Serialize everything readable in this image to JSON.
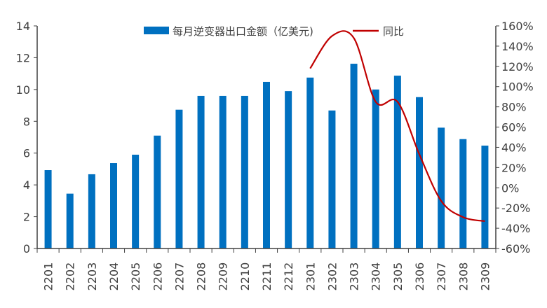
{
  "chart_data": {
    "type": "bar+line",
    "categories": [
      "2201",
      "2202",
      "2203",
      "2204",
      "2205",
      "2206",
      "2207",
      "2208",
      "2209",
      "2210",
      "2211",
      "2212",
      "2301",
      "2302",
      "2303",
      "2304",
      "2305",
      "2306",
      "2307",
      "2308",
      "2309"
    ],
    "series": [
      {
        "name": "每月逆变器出口金额（亿美元)",
        "type": "bar",
        "axis": "left",
        "color": "#0070C0",
        "values": [
          4.93,
          3.45,
          4.67,
          5.37,
          5.9,
          7.1,
          8.73,
          9.6,
          9.6,
          9.6,
          10.48,
          9.9,
          10.75,
          8.68,
          11.62,
          10.0,
          10.87,
          9.52,
          7.6,
          6.88,
          6.47
        ]
      },
      {
        "name": "同比",
        "type": "line",
        "axis": "right",
        "color": "#C00000",
        "values": [
          null,
          null,
          null,
          null,
          null,
          null,
          null,
          null,
          null,
          null,
          null,
          null,
          118,
          150,
          148,
          85,
          85,
          33,
          -13,
          -29,
          -33
        ]
      }
    ],
    "left_axis": {
      "min": 0,
      "max": 14,
      "ticks": [
        "0",
        "2",
        "4",
        "6",
        "8",
        "10",
        "12",
        "14"
      ]
    },
    "right_axis": {
      "min": -60,
      "max": 160,
      "ticks": [
        "-60%",
        "-40%",
        "-20%",
        "0%",
        "20%",
        "40%",
        "60%",
        "80%",
        "100%",
        "120%",
        "140%",
        "160%"
      ]
    },
    "legend": "top",
    "grid": false
  }
}
